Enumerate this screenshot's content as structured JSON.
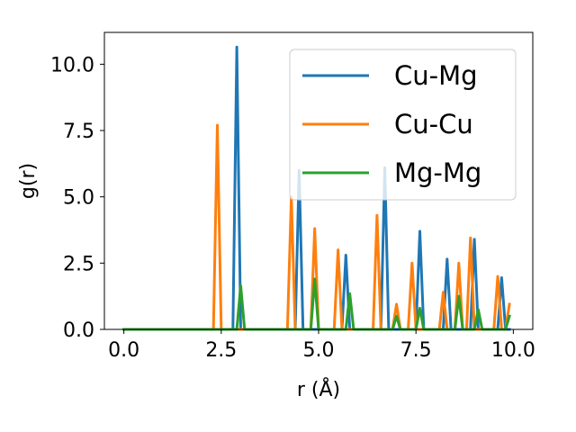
{
  "chart_data": {
    "type": "line",
    "xlabel": "r (Å)",
    "ylabel": "g(r)",
    "xlim": [
      -0.5,
      10.5
    ],
    "ylim": [
      0,
      11.2
    ],
    "xticks": [
      0.0,
      2.5,
      5.0,
      7.5,
      10.0
    ],
    "xtick_labels": [
      "0.0",
      "2.5",
      "5.0",
      "7.5",
      "10.0"
    ],
    "yticks": [
      0.0,
      2.5,
      5.0,
      7.5,
      10.0
    ],
    "ytick_labels": [
      "0.0",
      "2.5",
      "5.0",
      "7.5",
      "10.0"
    ],
    "grid": false,
    "legend_position": "top-right",
    "series": [
      {
        "name": "Cu-Mg",
        "color": "#1f77b4",
        "x": [
          0.0,
          2.8,
          2.9,
          3.0,
          4.4,
          4.5,
          4.6,
          5.6,
          5.7,
          5.8,
          6.6,
          6.7,
          6.8,
          7.5,
          7.6,
          7.7,
          8.2,
          8.3,
          8.4,
          8.9,
          9.0,
          9.1,
          9.6,
          9.7,
          9.8,
          9.9
        ],
        "y": [
          0.0,
          0.0,
          10.65,
          0.0,
          0.0,
          6.0,
          0.0,
          0.0,
          2.8,
          0.0,
          0.0,
          6.1,
          0.0,
          0.0,
          3.7,
          0.0,
          0.0,
          2.65,
          0.0,
          0.0,
          3.4,
          0.0,
          0.0,
          1.95,
          0.0,
          0.0
        ]
      },
      {
        "name": "Cu-Cu",
        "color": "#ff7f0e",
        "x": [
          0.0,
          2.3,
          2.4,
          2.5,
          4.2,
          4.3,
          4.4,
          4.8,
          4.9,
          5.0,
          5.4,
          5.5,
          5.6,
          6.4,
          6.5,
          6.6,
          6.9,
          7.0,
          7.1,
          7.3,
          7.4,
          7.5,
          8.1,
          8.2,
          8.3,
          8.5,
          8.6,
          8.7,
          8.8,
          8.9,
          9.0,
          9.5,
          9.6,
          9.7,
          9.8,
          9.9
        ],
        "y": [
          0.0,
          0.0,
          7.7,
          0.0,
          0.0,
          5.0,
          0.0,
          0.0,
          3.8,
          0.0,
          0.0,
          3.0,
          0.0,
          0.0,
          4.3,
          0.0,
          0.0,
          0.95,
          0.0,
          0.0,
          2.5,
          0.0,
          0.0,
          1.4,
          0.0,
          0.0,
          2.5,
          0.0,
          0.0,
          3.45,
          0.0,
          0.0,
          2.0,
          0.0,
          0.0,
          0.95
        ]
      },
      {
        "name": "Mg-Mg",
        "color": "#2ca02c",
        "x": [
          0.0,
          2.9,
          3.0,
          3.1,
          4.8,
          4.9,
          5.0,
          5.7,
          5.8,
          5.9,
          6.9,
          7.0,
          7.1,
          7.5,
          7.6,
          7.7,
          8.5,
          8.6,
          8.7,
          9.0,
          9.1,
          9.2,
          9.8,
          9.9
        ],
        "y": [
          0.0,
          0.0,
          1.65,
          0.0,
          0.0,
          1.9,
          0.0,
          0.0,
          1.35,
          0.0,
          0.0,
          0.5,
          0.0,
          0.0,
          0.8,
          0.0,
          0.0,
          1.25,
          0.0,
          0.0,
          0.75,
          0.0,
          0.0,
          0.5
        ]
      }
    ]
  }
}
